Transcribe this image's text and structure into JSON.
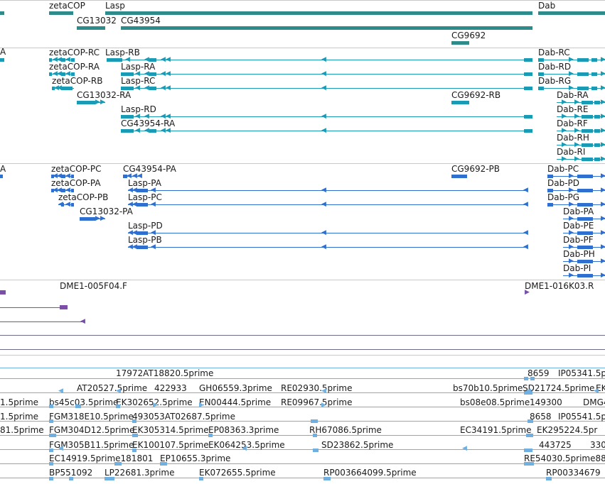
{
  "colors": {
    "gene": "#2e8b8b",
    "transcript": "#1a9bb5",
    "protein": "#2f6fd0",
    "clone": "#7b4fa8",
    "est": "#6fb0e0",
    "divider": "#c8c8c8"
  },
  "tracks": [
    {
      "name": "gene-span",
      "features": [
        {
          "label": "zetaCOP"
        },
        {
          "label": "Lasp"
        },
        {
          "label": "Dab"
        },
        {
          "label": "CG13032"
        },
        {
          "label": "CG43954"
        },
        {
          "label": "CG9692"
        }
      ]
    },
    {
      "name": "transcripts",
      "features": [
        {
          "label": "A"
        },
        {
          "label": "zetaCOP-RC"
        },
        {
          "label": "Lasp-RB"
        },
        {
          "label": "Dab-RC"
        },
        {
          "label": "zetaCOP-RA"
        },
        {
          "label": "Lasp-RA"
        },
        {
          "label": "Dab-RD"
        },
        {
          "label": "zetaCOP-RB"
        },
        {
          "label": "Lasp-RC"
        },
        {
          "label": "Dab-RG"
        },
        {
          "label": "CG13032-RA"
        },
        {
          "label": "CG9692-RB"
        },
        {
          "label": "Dab-RA"
        },
        {
          "label": "Lasp-RD"
        },
        {
          "label": "Dab-RE"
        },
        {
          "label": "CG43954-RA"
        },
        {
          "label": "Dab-RF"
        },
        {
          "label": "Dab-RH"
        },
        {
          "label": "Dab-RI"
        }
      ]
    },
    {
      "name": "proteins",
      "features": [
        {
          "label": "A"
        },
        {
          "label": "zetaCOP-PC"
        },
        {
          "label": "CG43954-PA"
        },
        {
          "label": "CG9692-PB"
        },
        {
          "label": "Dab-PC"
        },
        {
          "label": "zetaCOP-PA"
        },
        {
          "label": "Lasp-PA"
        },
        {
          "label": "Dab-PD"
        },
        {
          "label": "zetaCOP-PB"
        },
        {
          "label": "Lasp-PC"
        },
        {
          "label": "Dab-PG"
        },
        {
          "label": "CG13032-PA"
        },
        {
          "label": "Dab-PA"
        },
        {
          "label": "Lasp-PD"
        },
        {
          "label": "Dab-PE"
        },
        {
          "label": "Lasp-PB"
        },
        {
          "label": "Dab-PF"
        },
        {
          "label": "Dab-PH"
        },
        {
          "label": "Dab-PI"
        }
      ]
    },
    {
      "name": "clones",
      "features": [
        {
          "label": "DME1-005F04.F"
        },
        {
          "label": "DME1-016K03.R"
        }
      ]
    },
    {
      "name": "ests",
      "features": [
        {
          "label": "17972AT18820.5prime"
        },
        {
          "label": "8659"
        },
        {
          "label": "IP05341.5p"
        },
        {
          "label": "AT20527.5prime"
        },
        {
          "label": "422933"
        },
        {
          "label": "GH06559.3prime"
        },
        {
          "label": "RE02930.5prime"
        },
        {
          "label": "bs70b10.5prime"
        },
        {
          "label": "SD21724.5prime"
        },
        {
          "label": "EK"
        },
        {
          "label": "1.5prime"
        },
        {
          "label": "bs45c03.5prime"
        },
        {
          "label": "EK302652.5prime"
        },
        {
          "label": "EN00444.5prime"
        },
        {
          "label": "RE09967.5prime"
        },
        {
          "label": "bs08e08.5prime"
        },
        {
          "label": "149300"
        },
        {
          "label": "DMG4"
        },
        {
          "label": "1.5prime"
        },
        {
          "label": "FGM318E10.5prime"
        },
        {
          "label": "493053AT02687.5prime"
        },
        {
          "label": "8658"
        },
        {
          "label": "IP05541.5p"
        },
        {
          "label": "81.5prime"
        },
        {
          "label": "FGM304D12.5prime"
        },
        {
          "label": "EK305314.5prime"
        },
        {
          "label": "EP08363.3prime"
        },
        {
          "label": "RH67086.5prime"
        },
        {
          "label": "EC34191.5prime"
        },
        {
          "label": "EK295224.5pr"
        },
        {
          "label": "FGM305B11.5prime"
        },
        {
          "label": "EK100107.5prime"
        },
        {
          "label": "EK064253.5prime"
        },
        {
          "label": "SD23862.5prime"
        },
        {
          "label": "443725"
        },
        {
          "label": "330"
        },
        {
          "label": "EC14919.5prime181801"
        },
        {
          "label": "EP10655.3prime"
        },
        {
          "label": "RE54030.5prime88"
        },
        {
          "label": "BP551092"
        },
        {
          "label": "LP22681.3prime"
        },
        {
          "label": "EK072655.5prime"
        },
        {
          "label": "RP003664099.5prime"
        },
        {
          "label": "RP00334679"
        }
      ]
    }
  ]
}
